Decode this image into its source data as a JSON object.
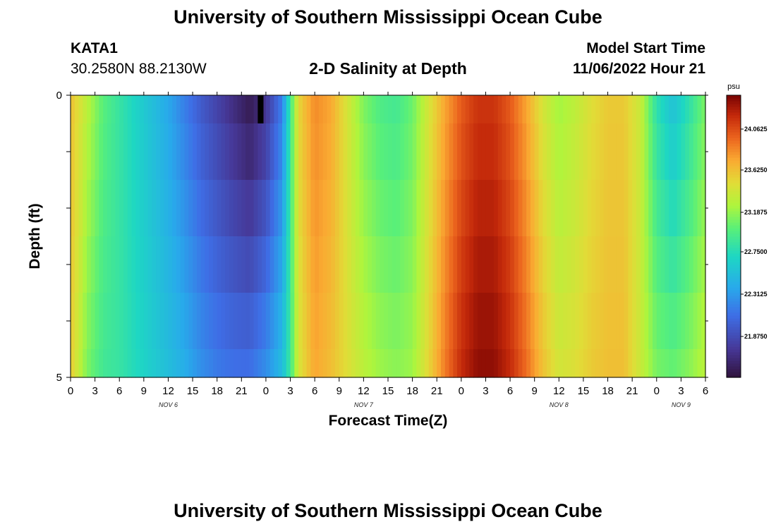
{
  "title": "University of Southern Mississippi Ocean Cube",
  "station": {
    "id": "KATA1",
    "coords": "30.2580N  88.2130W"
  },
  "subtitle": "2-D Salinity at Depth",
  "model_start": {
    "label": "Model Start Time",
    "value": "11/06/2022 Hour 21"
  },
  "xlabel": "Forecast Time(Z)",
  "ylabel": "Depth (ft)",
  "y_ticks": [
    "0",
    "5"
  ],
  "x_ticks": [
    "0",
    "3",
    "6",
    "9",
    "12",
    "15",
    "18",
    "21",
    "0",
    "3",
    "6",
    "9",
    "12",
    "15",
    "18",
    "21",
    "0",
    "3",
    "6",
    "9",
    "12",
    "15",
    "18",
    "21",
    "0",
    "3",
    "6"
  ],
  "day_labels": [
    {
      "text": "NOV 6",
      "hour": 12
    },
    {
      "text": "NOV 7",
      "hour": 36
    },
    {
      "text": "NOV 8",
      "hour": 60
    },
    {
      "text": "NOV 9",
      "hour": 75
    }
  ],
  "colorbar": {
    "unit": "psu",
    "ticks": [
      "24.0625",
      "23.6250",
      "23.1875",
      "22.7500",
      "22.3125",
      "21.8750"
    ],
    "range": [
      21.5,
      24.35
    ]
  },
  "chart_data": {
    "type": "heatmap",
    "x_unit": "forecast hour from 11/06 00Z",
    "xlim": [
      0,
      78
    ],
    "ylim": [
      0,
      5
    ],
    "y_inverted": true,
    "depth_rows_ft": [
      "0-0.5",
      "0.5-1.5",
      "1.5-2.5",
      "2.5-3.5",
      "3.5-4.5",
      "4.5-5"
    ],
    "x_hours": [
      0,
      2,
      4,
      6,
      8,
      10,
      12,
      14,
      16,
      18,
      20,
      22,
      24,
      26,
      27,
      28,
      30,
      32,
      34,
      36,
      38,
      40,
      42,
      44,
      46,
      48,
      50,
      52,
      54,
      56,
      58,
      60,
      62,
      64,
      66,
      68,
      70,
      72,
      74,
      76,
      78
    ],
    "surface_salinity": [
      23.6,
      23.3,
      23.0,
      22.85,
      22.7,
      22.55,
      22.4,
      22.2,
      22.0,
      21.85,
      21.7,
      21.55,
      21.75,
      22.2,
      22.9,
      23.5,
      23.8,
      23.7,
      23.4,
      23.1,
      22.95,
      22.9,
      23.05,
      23.4,
      23.7,
      23.95,
      24.1,
      24.1,
      23.95,
      23.7,
      23.4,
      23.2,
      23.3,
      23.45,
      23.55,
      23.55,
      23.35,
      22.8,
      22.55,
      22.8,
      23.1
    ],
    "bottom_salinity": [
      23.55,
      23.1,
      22.9,
      22.85,
      22.75,
      22.65,
      22.55,
      22.45,
      22.3,
      22.2,
      22.15,
      22.15,
      22.3,
      22.55,
      22.9,
      23.4,
      23.7,
      23.6,
      23.45,
      23.3,
      23.2,
      23.15,
      23.2,
      23.5,
      23.85,
      24.15,
      24.3,
      24.3,
      24.15,
      23.9,
      23.6,
      23.4,
      23.45,
      23.55,
      23.6,
      23.6,
      23.35,
      23.1,
      23.05,
      23.15,
      23.3
    ]
  }
}
